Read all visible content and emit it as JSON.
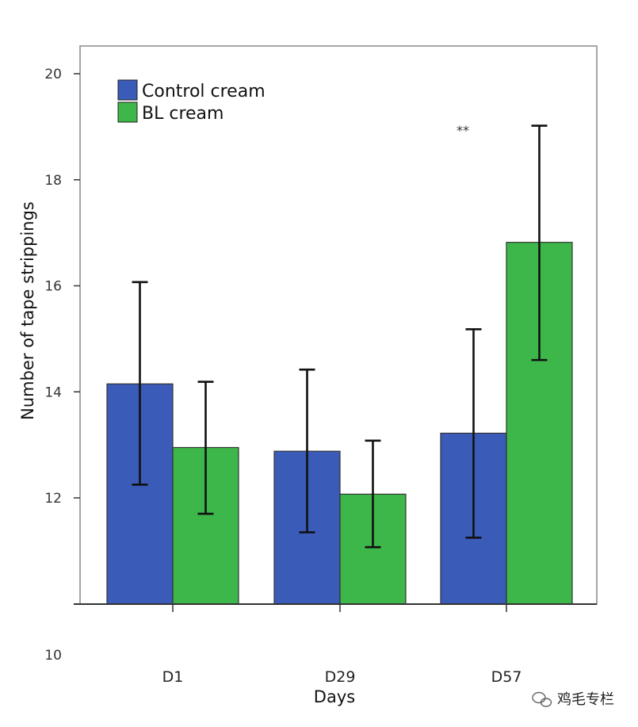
{
  "chart_data": {
    "type": "bar",
    "categories": [
      "D1",
      "D29",
      "D57"
    ],
    "series": [
      {
        "name": "Control cream",
        "color": "#3a5bb8",
        "values": [
          14.15,
          12.88,
          13.22
        ],
        "error_low": [
          12.25,
          11.35,
          11.25
        ],
        "error_high": [
          16.07,
          14.42,
          15.18
        ]
      },
      {
        "name": "BL cream",
        "color": "#3db64a",
        "values": [
          12.95,
          12.07,
          16.82
        ],
        "error_low": [
          11.7,
          11.07,
          14.6
        ],
        "error_high": [
          14.19,
          13.08,
          19.02
        ]
      }
    ],
    "xlabel": "Days",
    "ylabel": "Number of tape strippings",
    "yticks": [
      "10",
      "12",
      "14",
      "16",
      "18",
      "20"
    ],
    "ylim": [
      10,
      20.5
    ],
    "annotation": {
      "text": "**",
      "category": "D57"
    },
    "legend_position": "top-left",
    "grid": false
  },
  "watermark": {
    "text": "鸡毛专栏",
    "icon": "wechat-icon"
  }
}
